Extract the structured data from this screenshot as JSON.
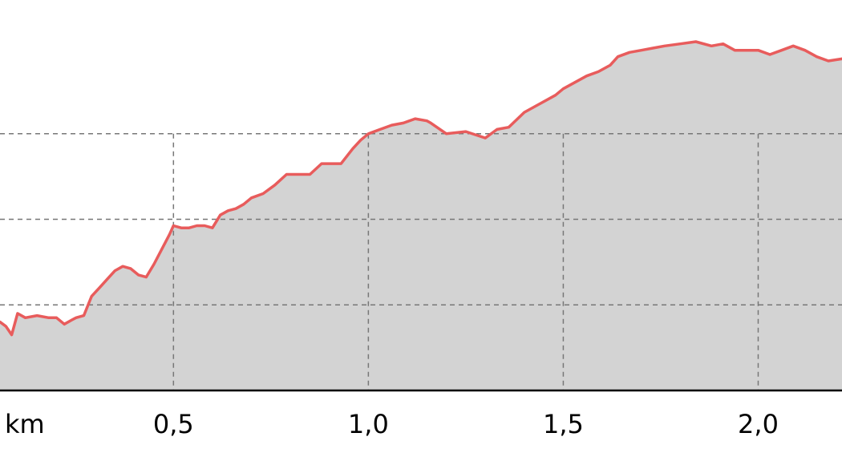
{
  "chart_data": {
    "type": "area",
    "title": "",
    "xlabel": "",
    "ylabel": "",
    "x_unit_label": "km",
    "x_ticks": [
      {
        "value": 0.5,
        "label": "0,5"
      },
      {
        "value": 1.0,
        "label": "1,0"
      },
      {
        "value": 1.5,
        "label": "1,5"
      },
      {
        "value": 2.0,
        "label": "2,0"
      }
    ],
    "xlim": [
      0.055,
      2.215
    ],
    "ylim": [
      0,
      8
    ],
    "y_gridlines": [
      2,
      4,
      6
    ],
    "grid": true,
    "series": [
      {
        "color": "#e85c5c",
        "fill": "#d3d3d3",
        "x": [
          0.055,
          0.07,
          0.085,
          0.1,
          0.12,
          0.15,
          0.18,
          0.2,
          0.22,
          0.24,
          0.25,
          0.27,
          0.29,
          0.31,
          0.33,
          0.35,
          0.37,
          0.39,
          0.41,
          0.43,
          0.45,
          0.47,
          0.49,
          0.5,
          0.52,
          0.54,
          0.56,
          0.58,
          0.6,
          0.62,
          0.64,
          0.66,
          0.68,
          0.7,
          0.73,
          0.76,
          0.79,
          0.82,
          0.85,
          0.88,
          0.9,
          0.93,
          0.96,
          0.98,
          1.0,
          1.03,
          1.06,
          1.09,
          1.12,
          1.15,
          1.16,
          1.2,
          1.25,
          1.3,
          1.33,
          1.36,
          1.4,
          1.44,
          1.48,
          1.5,
          1.53,
          1.56,
          1.59,
          1.62,
          1.64,
          1.67,
          1.7,
          1.73,
          1.76,
          1.8,
          1.84,
          1.88,
          1.91,
          1.94,
          1.97,
          2.0,
          2.03,
          2.06,
          2.09,
          2.12,
          2.15,
          2.18,
          2.215
        ],
        "y": [
          1.6,
          1.5,
          1.3,
          1.8,
          1.7,
          1.75,
          1.7,
          1.7,
          1.55,
          1.65,
          1.7,
          1.75,
          2.2,
          2.4,
          2.6,
          2.8,
          2.9,
          2.85,
          2.7,
          2.65,
          2.95,
          3.3,
          3.65,
          3.85,
          3.8,
          3.8,
          3.85,
          3.85,
          3.8,
          4.1,
          4.2,
          4.25,
          4.35,
          4.5,
          4.6,
          4.8,
          5.05,
          5.05,
          5.05,
          5.3,
          5.3,
          5.3,
          5.65,
          5.85,
          6.0,
          6.1,
          6.2,
          6.25,
          6.35,
          6.3,
          6.25,
          6.0,
          6.05,
          5.9,
          6.1,
          6.15,
          6.5,
          6.7,
          6.9,
          7.05,
          7.2,
          7.35,
          7.45,
          7.6,
          7.8,
          7.9,
          7.95,
          8.0,
          8.05,
          8.1,
          8.15,
          8.05,
          8.1,
          7.95,
          7.95,
          7.95,
          7.85,
          7.95,
          8.05,
          7.95,
          7.8,
          7.7,
          7.75
        ]
      }
    ]
  }
}
